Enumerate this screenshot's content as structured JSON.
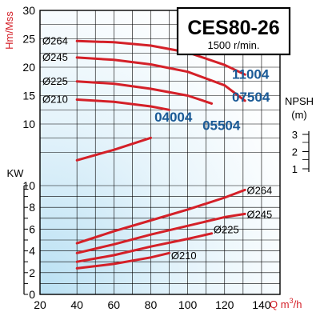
{
  "chart_data": {
    "type": "line",
    "title": "CES80-26",
    "subtitle": "1500 r/min.",
    "xlabel_prefix": "Q m",
    "xlabel_sup": "3",
    "xlabel_suffix": "/h",
    "head_ylabel": "Hm/Mss",
    "power_ylabel": "KW",
    "npsh_label_1": "NPSH",
    "npsh_label_2": "(m)",
    "x_range": [
      20,
      150
    ],
    "head_range": [
      0,
      30
    ],
    "power_range": [
      0,
      10
    ],
    "npsh_range": [
      1,
      3
    ],
    "x_ticks": [
      "20",
      "40",
      "60",
      "80",
      "100",
      "120",
      "140"
    ],
    "head_ticks": [
      "10",
      "15",
      "20",
      "25",
      "30"
    ],
    "power_ticks": [
      "0",
      "2",
      "4",
      "6",
      "8",
      "10"
    ],
    "npsh_ticks": [
      "1",
      "2",
      "3"
    ],
    "grid": true,
    "colors": {
      "curve": "#d42028",
      "model": "#1a5a96",
      "axis_label": "#d42028",
      "grid": "#000000",
      "gradient": "#cde9f6"
    },
    "head_series": [
      {
        "name": "Ø264",
        "x": [
          40,
          60,
          80,
          100,
          120,
          131
        ],
        "y": [
          24.6,
          24.4,
          23.8,
          22.6,
          20.4,
          18.7
        ]
      },
      {
        "name": "Ø245",
        "x": [
          40,
          60,
          80,
          100,
          120,
          131
        ],
        "y": [
          21.7,
          21.3,
          20.5,
          19.2,
          16.8,
          14.1
        ]
      },
      {
        "name": "Ø225",
        "x": [
          40,
          60,
          80,
          100,
          113
        ],
        "y": [
          17.5,
          17.1,
          16.2,
          15.0,
          13.6
        ]
      },
      {
        "name": "Ø210",
        "x": [
          40,
          60,
          80,
          90
        ],
        "y": [
          14.3,
          13.9,
          13.1,
          12.5
        ]
      }
    ],
    "model_labels": [
      {
        "text": "11004",
        "x": 124,
        "y": 18.8
      },
      {
        "text": "07504",
        "x": 124,
        "y": 14.8
      },
      {
        "text": "04004",
        "x": 82,
        "y": 11.3
      },
      {
        "text": "05504",
        "x": 108,
        "y": 9.8
      }
    ],
    "npsh_series": {
      "x": [
        40,
        60,
        80
      ],
      "y": [
        1.5,
        2.1,
        2.8
      ]
    },
    "power_series": [
      {
        "name": "Ø264",
        "x": [
          40,
          60,
          80,
          100,
          120,
          131
        ],
        "y": [
          4.7,
          5.8,
          6.8,
          7.8,
          8.9,
          9.6
        ]
      },
      {
        "name": "Ø245",
        "x": [
          40,
          60,
          80,
          100,
          120,
          131
        ],
        "y": [
          3.8,
          4.6,
          5.5,
          6.3,
          7.1,
          7.4
        ]
      },
      {
        "name": "Ø225",
        "x": [
          40,
          60,
          80,
          100,
          113
        ],
        "y": [
          3.0,
          3.6,
          4.4,
          5.1,
          5.6
        ]
      },
      {
        "name": "Ø210",
        "x": [
          40,
          60,
          80,
          90
        ],
        "y": [
          2.4,
          2.8,
          3.4,
          3.8
        ]
      }
    ],
    "power_curve_labels": [
      {
        "text": "Ø264",
        "x": 132,
        "y": 9.6
      },
      {
        "text": "Ø245",
        "x": 132,
        "y": 7.4
      },
      {
        "text": "Ø225",
        "x": 114,
        "y": 6.0
      },
      {
        "text": "Ø210",
        "x": 91,
        "y": 3.6
      }
    ]
  }
}
